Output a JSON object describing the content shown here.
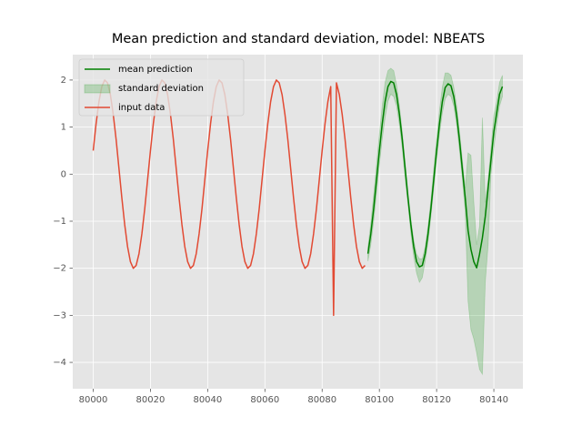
{
  "chart_data": {
    "type": "line",
    "title": "Mean prediction and standard deviation, model: NBEATS",
    "xlim": [
      79992.85,
      80150.15
    ],
    "ylim": [
      -4.56,
      2.54
    ],
    "xticks": [
      80000,
      80020,
      80040,
      80060,
      80080,
      80100,
      80120,
      80140
    ],
    "yticks": [
      {
        "value": -4,
        "label": "−4"
      },
      {
        "value": -3,
        "label": "−3"
      },
      {
        "value": -2,
        "label": "−2"
      },
      {
        "value": -1,
        "label": "−1"
      },
      0,
      1,
      2
    ],
    "grid": true,
    "legend": "upper left",
    "series": [
      {
        "name": "mean prediction",
        "color": "#008000",
        "x": [
          80096,
          80097,
          80098,
          80099,
          80100,
          80101,
          80102,
          80103,
          80104,
          80105,
          80106,
          80107,
          80108,
          80109,
          80110,
          80111,
          80112,
          80113,
          80114,
          80115,
          80116,
          80117,
          80118,
          80119,
          80120,
          80121,
          80122,
          80123,
          80124,
          80125,
          80126,
          80127,
          80128,
          80129,
          80130,
          80131,
          80132,
          80133,
          80134,
          80135,
          80136,
          80137,
          80138,
          80139,
          80140,
          80141,
          80142,
          80143
        ],
        "values": [
          -1.69,
          -1.27,
          -0.74,
          -0.12,
          0.5,
          1.07,
          1.54,
          1.86,
          1.97,
          1.94,
          1.69,
          1.27,
          0.74,
          0.12,
          -0.5,
          -1.07,
          -1.54,
          -1.86,
          -1.97,
          -1.94,
          -1.69,
          -1.27,
          -0.74,
          -0.12,
          0.5,
          1.07,
          1.54,
          1.84,
          1.92,
          1.88,
          1.65,
          1.25,
          0.72,
          0.1,
          -0.5,
          -1.2,
          -1.6,
          -1.86,
          -1.99,
          -1.7,
          -1.35,
          -0.9,
          -0.3,
          0.3,
          0.9,
          1.3,
          1.7,
          1.86
        ]
      },
      {
        "name": "standard deviation",
        "color": "#2ca02c",
        "band": true,
        "x": [
          80096,
          80097,
          80098,
          80099,
          80100,
          80101,
          80102,
          80103,
          80104,
          80105,
          80106,
          80107,
          80108,
          80109,
          80110,
          80111,
          80112,
          80113,
          80114,
          80115,
          80116,
          80117,
          80118,
          80119,
          80120,
          80121,
          80122,
          80123,
          80124,
          80125,
          80126,
          80127,
          80128,
          80129,
          80130,
          80131,
          80132,
          80133,
          80134,
          80135,
          80136,
          80137,
          80138,
          80139,
          80140,
          80141,
          80142,
          80143
        ],
        "upper": [
          -1.55,
          -1.05,
          -0.45,
          0.2,
          0.85,
          1.45,
          1.95,
          2.2,
          2.25,
          2.2,
          1.9,
          1.45,
          0.9,
          0.25,
          -0.4,
          -0.95,
          -1.4,
          -1.7,
          -1.8,
          -1.8,
          -1.55,
          -1.1,
          -0.55,
          0.1,
          0.75,
          1.35,
          1.85,
          2.15,
          2.15,
          2.1,
          1.85,
          1.45,
          0.9,
          0.3,
          -0.3,
          0.45,
          0.4,
          -0.6,
          -1.5,
          -1.1,
          1.2,
          -0.6,
          -0.1,
          0.55,
          1.25,
          1.55,
          1.95,
          2.1
        ],
        "lower": [
          -1.85,
          -1.5,
          -1.0,
          -0.4,
          0.2,
          0.75,
          1.2,
          1.55,
          1.7,
          1.65,
          1.45,
          1.05,
          0.55,
          -0.1,
          -0.65,
          -1.25,
          -1.75,
          -2.1,
          -2.3,
          -2.2,
          -1.85,
          -1.45,
          -0.9,
          -0.3,
          0.3,
          0.85,
          1.3,
          1.6,
          1.7,
          1.65,
          1.45,
          1.05,
          0.5,
          -0.1,
          -0.8,
          -2.7,
          -3.3,
          -3.5,
          -3.8,
          -4.15,
          -4.25,
          -2.3,
          -1.5,
          0.0,
          0.55,
          1.05,
          1.45,
          1.65
        ]
      },
      {
        "name": "input data",
        "color": "#e24a33",
        "x": [
          80000,
          80001,
          80002,
          80003,
          80004,
          80005,
          80006,
          80007,
          80008,
          80009,
          80010,
          80011,
          80012,
          80013,
          80014,
          80015,
          80016,
          80017,
          80018,
          80019,
          80020,
          80021,
          80022,
          80023,
          80024,
          80025,
          80026,
          80027,
          80028,
          80029,
          80030,
          80031,
          80032,
          80033,
          80034,
          80035,
          80036,
          80037,
          80038,
          80039,
          80040,
          80041,
          80042,
          80043,
          80044,
          80045,
          80046,
          80047,
          80048,
          80049,
          80050,
          80051,
          80052,
          80053,
          80054,
          80055,
          80056,
          80057,
          80058,
          80059,
          80060,
          80061,
          80062,
          80063,
          80064,
          80065,
          80066,
          80067,
          80068,
          80069,
          80070,
          80071,
          80072,
          80073,
          80074,
          80075,
          80076,
          80077,
          80078,
          80079,
          80080,
          80081,
          80082,
          80083,
          80084,
          80085,
          80086,
          80087,
          80088,
          80089,
          80090,
          80091,
          80092,
          80093,
          80094,
          80095
        ],
        "values": [
          0.5,
          1.07,
          1.54,
          1.86,
          2.0,
          1.94,
          1.69,
          1.27,
          0.74,
          0.12,
          -0.5,
          -1.07,
          -1.54,
          -1.86,
          -2.0,
          -1.94,
          -1.69,
          -1.27,
          -0.74,
          -0.12,
          0.5,
          1.07,
          1.54,
          1.86,
          2.0,
          1.94,
          1.69,
          1.27,
          0.74,
          0.12,
          -0.5,
          -1.07,
          -1.54,
          -1.86,
          -2.0,
          -1.94,
          -1.69,
          -1.27,
          -0.74,
          -0.12,
          0.5,
          1.07,
          1.54,
          1.86,
          2.0,
          1.94,
          1.69,
          1.27,
          0.74,
          0.12,
          -0.5,
          -1.07,
          -1.54,
          -1.86,
          -2.0,
          -1.94,
          -1.69,
          -1.27,
          -0.74,
          -0.12,
          0.5,
          1.07,
          1.54,
          1.86,
          2.0,
          1.94,
          1.69,
          1.27,
          0.74,
          0.12,
          -0.5,
          -1.07,
          -1.54,
          -1.86,
          -2.0,
          -1.94,
          -1.69,
          -1.27,
          -0.74,
          -0.12,
          0.5,
          1.07,
          1.54,
          1.86,
          -3.0,
          1.94,
          1.69,
          1.27,
          0.74,
          0.12,
          -0.5,
          -1.07,
          -1.54,
          -1.86,
          -2.0,
          -1.94
        ]
      }
    ]
  }
}
